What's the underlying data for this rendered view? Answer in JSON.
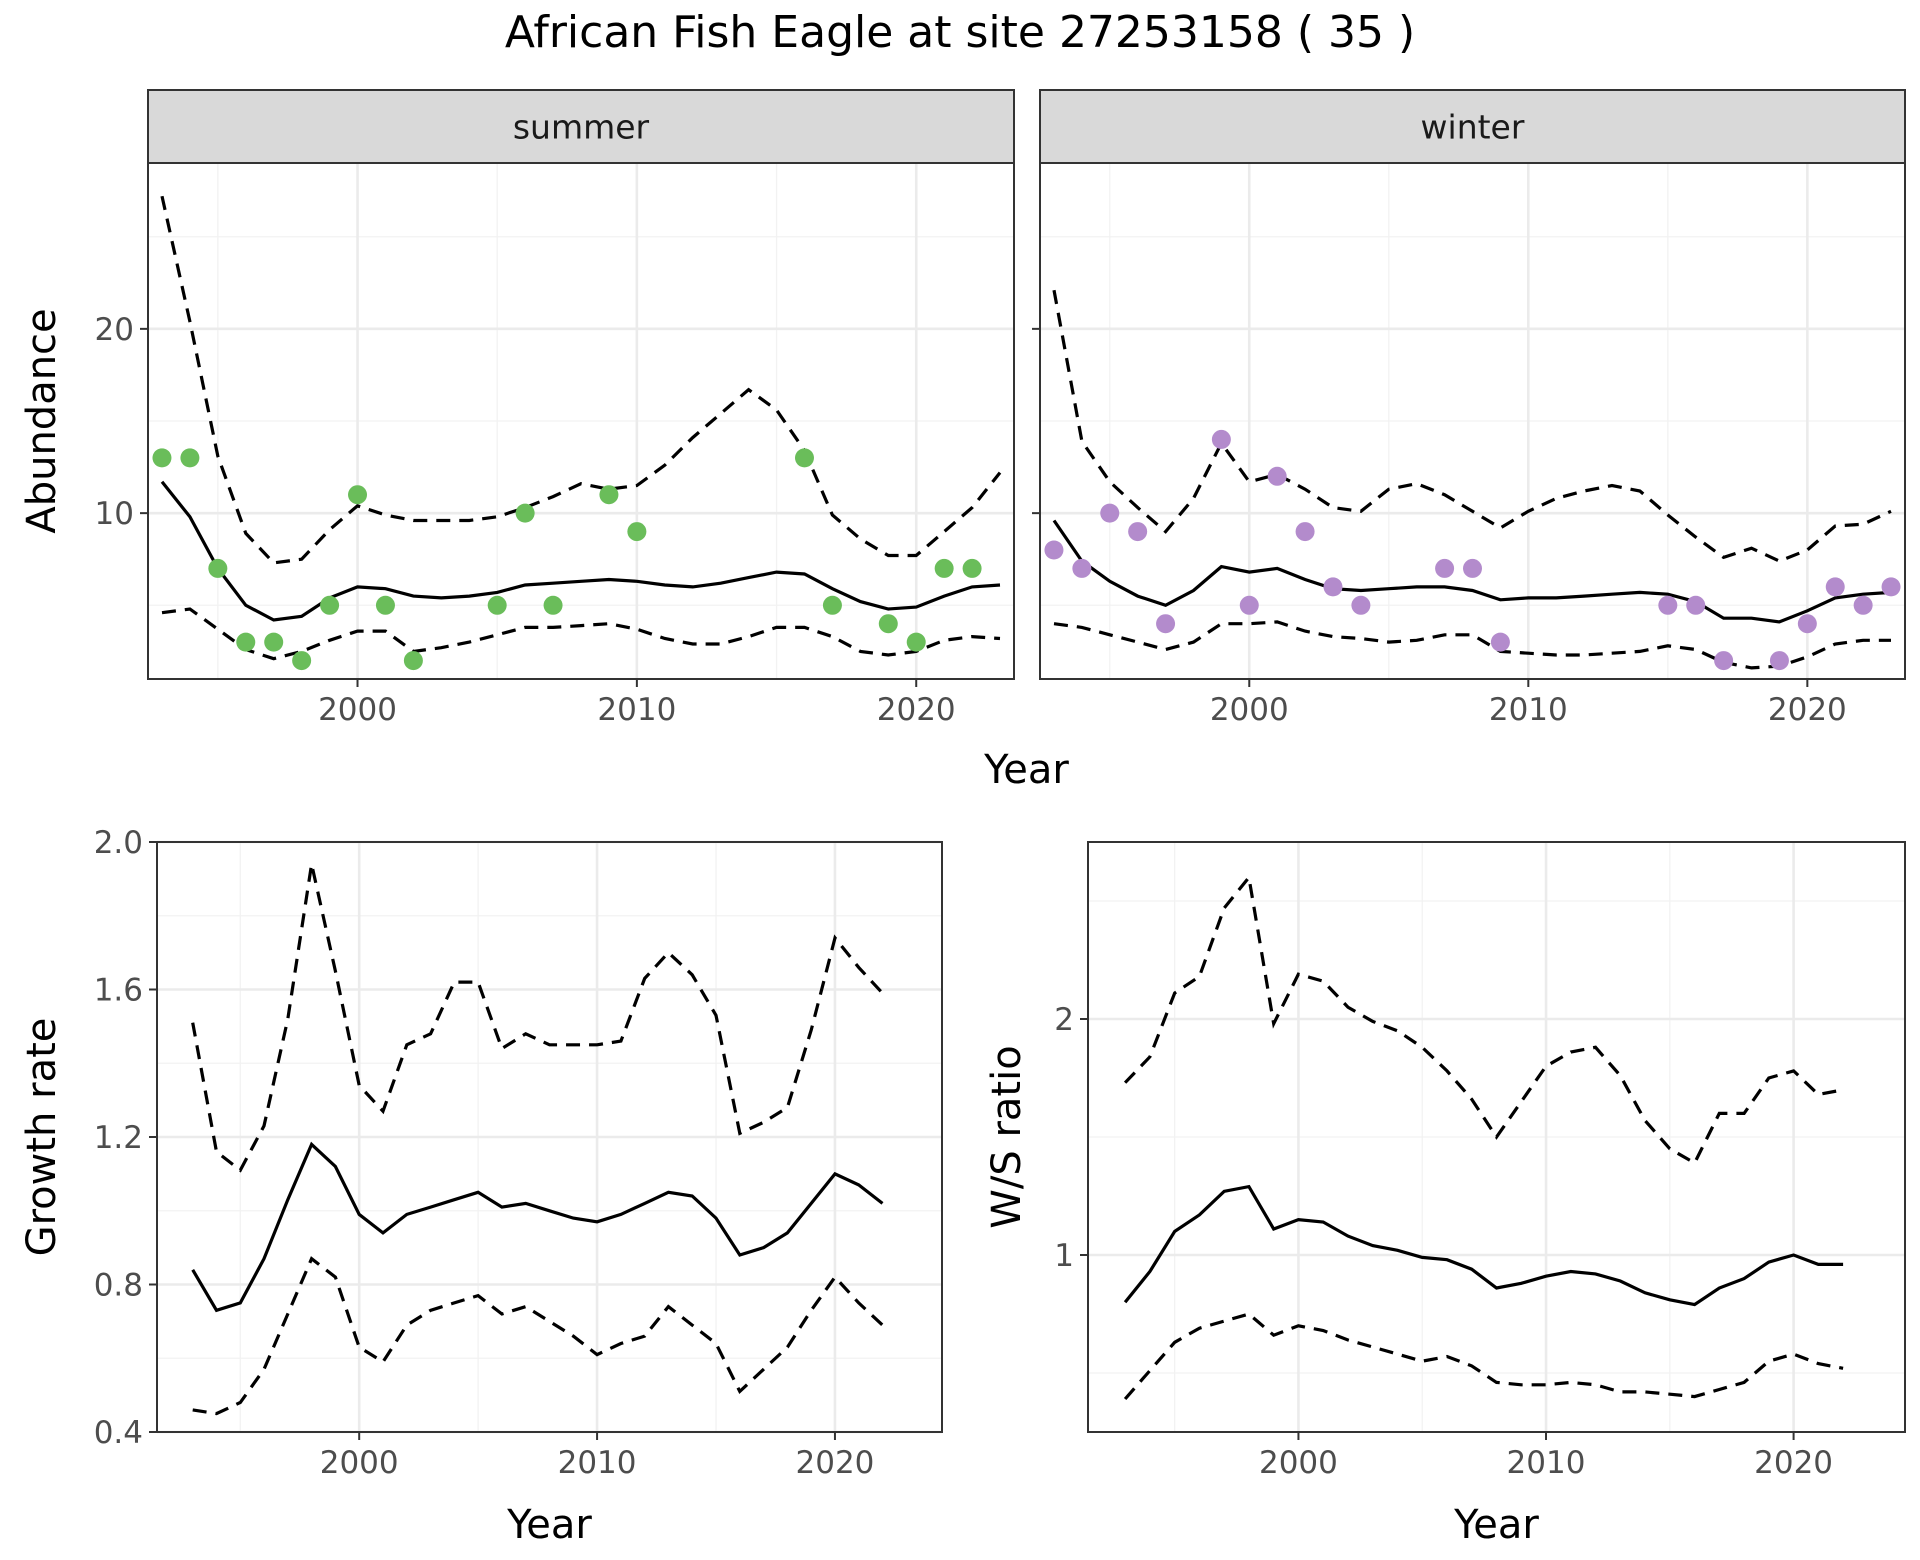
{
  "title": "African Fish Eagle at site 27253158 ( 35 )",
  "colors": {
    "summer_points": "#6abd5a",
    "winter_points": "#b38bcc",
    "lines": "#000000"
  },
  "chart_data": [
    {
      "id": "abundance",
      "type": "line",
      "facets": [
        "summer",
        "winter"
      ],
      "xlabel": "Year",
      "ylabel": "Abundance",
      "xlim": [
        1992.5,
        2023.5
      ],
      "ylim": [
        1,
        29
      ],
      "x_ticks": [
        2000,
        2010,
        2020
      ],
      "y_ticks": [
        10,
        20
      ],
      "grid": true,
      "panels": [
        {
          "label": "summer",
          "point_color": "#6abd5a",
          "points": {
            "x": [
              1993,
              1994,
              1995,
              1996,
              1997,
              1998,
              1999,
              2000,
              2001,
              2002,
              2005,
              2006,
              2007,
              2009,
              2010,
              2016,
              2017,
              2019,
              2020,
              2021,
              2022
            ],
            "y": [
              13,
              13,
              7,
              3,
              3,
              2,
              5,
              11,
              5,
              2,
              5,
              10,
              5,
              11,
              9,
              13,
              5,
              4,
              3,
              7,
              7
            ]
          },
          "series": [
            {
              "role": "mean",
              "x": [
                1993,
                1994,
                1995,
                1996,
                1997,
                1998,
                1999,
                2000,
                2001,
                2002,
                2003,
                2004,
                2005,
                2006,
                2007,
                2008,
                2009,
                2010,
                2011,
                2012,
                2013,
                2014,
                2015,
                2016,
                2017,
                2018,
                2019,
                2020,
                2021,
                2022,
                2023
              ],
              "y": [
                11.7,
                9.8,
                7.0,
                5.0,
                4.2,
                4.4,
                5.4,
                6.0,
                5.9,
                5.5,
                5.4,
                5.5,
                5.7,
                6.1,
                6.2,
                6.3,
                6.4,
                6.3,
                6.1,
                6.0,
                6.2,
                6.5,
                6.8,
                6.7,
                5.9,
                5.2,
                4.8,
                4.9,
                5.5,
                6.0,
                6.1
              ]
            },
            {
              "role": "upper",
              "x": [
                1993,
                1994,
                1995,
                1996,
                1997,
                1998,
                1999,
                2000,
                2001,
                2002,
                2003,
                2004,
                2005,
                2006,
                2007,
                2008,
                2009,
                2010,
                2011,
                2012,
                2013,
                2014,
                2015,
                2016,
                2017,
                2018,
                2019,
                2020,
                2021,
                2022,
                2023
              ],
              "y": [
                27.2,
                20.4,
                13.1,
                8.9,
                7.3,
                7.5,
                9.1,
                10.4,
                9.9,
                9.6,
                9.6,
                9.6,
                9.8,
                10.3,
                10.9,
                11.6,
                11.3,
                11.5,
                12.6,
                14.1,
                15.4,
                16.7,
                15.6,
                13.4,
                9.9,
                8.6,
                7.7,
                7.7,
                9.0,
                10.3,
                12.2
              ]
            },
            {
              "role": "lower",
              "x": [
                1993,
                1994,
                1995,
                1996,
                1997,
                1998,
                1999,
                2000,
                2001,
                2002,
                2003,
                2004,
                2005,
                2006,
                2007,
                2008,
                2009,
                2010,
                2011,
                2012,
                2013,
                2014,
                2015,
                2016,
                2017,
                2018,
                2019,
                2020,
                2021,
                2022,
                2023
              ],
              "y": [
                4.6,
                4.8,
                3.7,
                2.6,
                2.1,
                2.5,
                3.1,
                3.6,
                3.6,
                2.5,
                2.7,
                3.0,
                3.4,
                3.8,
                3.8,
                3.9,
                4.0,
                3.7,
                3.2,
                2.9,
                2.9,
                3.3,
                3.8,
                3.8,
                3.3,
                2.5,
                2.3,
                2.5,
                3.1,
                3.3,
                3.2
              ]
            }
          ]
        },
        {
          "label": "winter",
          "point_color": "#b38bcc",
          "points": {
            "x": [
              1993,
              1994,
              1995,
              1996,
              1997,
              1999,
              2000,
              2001,
              2002,
              2003,
              2004,
              2007,
              2008,
              2009,
              2015,
              2016,
              2017,
              2019,
              2020,
              2021,
              2022,
              2023
            ],
            "y": [
              8,
              7,
              10,
              9,
              4,
              14,
              5,
              12,
              9,
              6,
              5,
              7,
              7,
              3,
              5,
              5,
              2,
              2,
              4,
              6,
              5,
              6
            ]
          },
          "series": [
            {
              "role": "mean",
              "x": [
                1993,
                1994,
                1995,
                1996,
                1997,
                1998,
                1999,
                2000,
                2001,
                2002,
                2003,
                2004,
                2005,
                2006,
                2007,
                2008,
                2009,
                2010,
                2011,
                2012,
                2013,
                2014,
                2015,
                2016,
                2017,
                2018,
                2019,
                2020,
                2021,
                2022,
                2023
              ],
              "y": [
                9.6,
                7.4,
                6.3,
                5.5,
                5.0,
                5.8,
                7.1,
                6.8,
                7.0,
                6.4,
                5.9,
                5.8,
                5.9,
                6.0,
                6.0,
                5.8,
                5.3,
                5.4,
                5.4,
                5.5,
                5.6,
                5.7,
                5.6,
                5.2,
                4.3,
                4.3,
                4.1,
                4.7,
                5.4,
                5.6,
                5.7
              ]
            },
            {
              "role": "upper",
              "x": [
                1993,
                1994,
                1995,
                1996,
                1997,
                1998,
                1999,
                2000,
                2001,
                2002,
                2003,
                2004,
                2005,
                2006,
                2007,
                2008,
                2009,
                2010,
                2011,
                2012,
                2013,
                2014,
                2015,
                2016,
                2017,
                2018,
                2019,
                2020,
                2021,
                2022,
                2023
              ],
              "y": [
                22.1,
                13.9,
                11.7,
                10.3,
                9.0,
                10.8,
                13.8,
                11.7,
                12.1,
                11.3,
                10.3,
                10.1,
                11.3,
                11.6,
                11.0,
                10.1,
                9.2,
                10.1,
                10.8,
                11.2,
                11.5,
                11.2,
                9.9,
                8.7,
                7.6,
                8.1,
                7.4,
                8.0,
                9.3,
                9.4,
                10.1
              ]
            },
            {
              "role": "lower",
              "x": [
                1993,
                1994,
                1995,
                1996,
                1997,
                1998,
                1999,
                2000,
                2001,
                2002,
                2003,
                2004,
                2005,
                2006,
                2007,
                2008,
                2009,
                2010,
                2011,
                2012,
                2013,
                2014,
                2015,
                2016,
                2017,
                2018,
                2019,
                2020,
                2021,
                2022,
                2023
              ],
              "y": [
                4.0,
                3.8,
                3.4,
                3.0,
                2.6,
                3.0,
                4.0,
                4.0,
                4.1,
                3.6,
                3.3,
                3.2,
                3.0,
                3.1,
                3.4,
                3.4,
                2.5,
                2.4,
                2.3,
                2.3,
                2.4,
                2.5,
                2.8,
                2.6,
                1.9,
                1.6,
                1.7,
                2.2,
                2.9,
                3.1,
                3.1
              ]
            }
          ]
        }
      ]
    },
    {
      "id": "growth",
      "type": "line",
      "xlabel": "Year",
      "ylabel": "Growth rate",
      "xlim": [
        1991.5,
        2024.5
      ],
      "ylim": [
        0.4,
        2.0
      ],
      "x_ticks": [
        2000,
        2010,
        2020
      ],
      "y_ticks": [
        0.4,
        0.8,
        1.2,
        1.6,
        2.0
      ],
      "y_tick_labels": [
        "0.4",
        "0.8",
        "1.2",
        "1.6",
        "2.0"
      ],
      "grid": true,
      "series": [
        {
          "role": "mean",
          "x": [
            1993,
            1994,
            1995,
            1996,
            1997,
            1998,
            1999,
            2000,
            2001,
            2002,
            2003,
            2004,
            2005,
            2006,
            2007,
            2008,
            2009,
            2010,
            2011,
            2012,
            2013,
            2014,
            2015,
            2016,
            2017,
            2018,
            2019,
            2020,
            2021,
            2022
          ],
          "y": [
            0.84,
            0.73,
            0.75,
            0.87,
            1.03,
            1.18,
            1.12,
            0.99,
            0.94,
            0.99,
            1.01,
            1.03,
            1.05,
            1.01,
            1.02,
            1.0,
            0.98,
            0.97,
            0.99,
            1.02,
            1.05,
            1.04,
            0.98,
            0.88,
            0.9,
            0.94,
            1.02,
            1.1,
            1.07,
            1.02
          ]
        },
        {
          "role": "upper",
          "x": [
            1993,
            1994,
            1995,
            1996,
            1997,
            1998,
            1999,
            2000,
            2001,
            2002,
            2003,
            2004,
            2005,
            2006,
            2007,
            2008,
            2009,
            2010,
            2011,
            2012,
            2013,
            2014,
            2015,
            2016,
            2017,
            2018,
            2019,
            2020,
            2021,
            2022
          ],
          "y": [
            1.51,
            1.16,
            1.11,
            1.23,
            1.52,
            1.94,
            1.65,
            1.34,
            1.27,
            1.45,
            1.48,
            1.62,
            1.62,
            1.44,
            1.48,
            1.45,
            1.45,
            1.45,
            1.46,
            1.63,
            1.7,
            1.64,
            1.53,
            1.21,
            1.24,
            1.28,
            1.49,
            1.74,
            1.66,
            1.59
          ]
        },
        {
          "role": "lower",
          "x": [
            1993,
            1994,
            1995,
            1996,
            1997,
            1998,
            1999,
            2000,
            2001,
            2002,
            2003,
            2004,
            2005,
            2006,
            2007,
            2008,
            2009,
            2010,
            2011,
            2012,
            2013,
            2014,
            2015,
            2016,
            2017,
            2018,
            2019,
            2020,
            2021,
            2022
          ],
          "y": [
            0.46,
            0.45,
            0.48,
            0.57,
            0.72,
            0.87,
            0.82,
            0.63,
            0.59,
            0.69,
            0.73,
            0.75,
            0.77,
            0.72,
            0.74,
            0.7,
            0.66,
            0.61,
            0.64,
            0.66,
            0.74,
            0.69,
            0.64,
            0.51,
            0.57,
            0.63,
            0.73,
            0.82,
            0.75,
            0.69
          ]
        }
      ]
    },
    {
      "id": "ws_ratio",
      "type": "line",
      "xlabel": "Year",
      "ylabel": "W/S ratio",
      "xlim": [
        1991.5,
        2024.5
      ],
      "ylim": [
        0.25,
        2.75
      ],
      "x_ticks": [
        2000,
        2010,
        2020
      ],
      "y_ticks": [
        1,
        2
      ],
      "grid": true,
      "series": [
        {
          "role": "mean",
          "x": [
            1993,
            1994,
            1995,
            1996,
            1997,
            1998,
            1999,
            2000,
            2001,
            2002,
            2003,
            2004,
            2005,
            2006,
            2007,
            2008,
            2009,
            2010,
            2011,
            2012,
            2013,
            2014,
            2015,
            2016,
            2017,
            2018,
            2019,
            2020,
            2021,
            2022
          ],
          "y": [
            0.8,
            0.93,
            1.1,
            1.17,
            1.27,
            1.29,
            1.11,
            1.15,
            1.14,
            1.08,
            1.04,
            1.02,
            0.99,
            0.98,
            0.94,
            0.86,
            0.88,
            0.91,
            0.93,
            0.92,
            0.89,
            0.84,
            0.81,
            0.79,
            0.86,
            0.9,
            0.97,
            1.0,
            0.96,
            0.96
          ]
        },
        {
          "role": "upper",
          "x": [
            1993,
            1994,
            1995,
            1996,
            1997,
            1998,
            1999,
            2000,
            2001,
            2002,
            2003,
            2004,
            2005,
            2006,
            2007,
            2008,
            2009,
            2010,
            2011,
            2012,
            2013,
            2014,
            2015,
            2016,
            2017,
            2018,
            2019,
            2020,
            2021,
            2022
          ],
          "y": [
            1.73,
            1.84,
            2.11,
            2.18,
            2.47,
            2.6,
            1.98,
            2.19,
            2.16,
            2.05,
            1.99,
            1.95,
            1.88,
            1.78,
            1.66,
            1.5,
            1.65,
            1.8,
            1.86,
            1.88,
            1.76,
            1.57,
            1.45,
            1.39,
            1.6,
            1.6,
            1.75,
            1.78,
            1.68,
            1.7
          ]
        },
        {
          "role": "lower",
          "x": [
            1993,
            1994,
            1995,
            1996,
            1997,
            1998,
            1999,
            2000,
            2001,
            2002,
            2003,
            2004,
            2005,
            2006,
            2007,
            2008,
            2009,
            2010,
            2011,
            2012,
            2013,
            2014,
            2015,
            2016,
            2017,
            2018,
            2019,
            2020,
            2021,
            2022
          ],
          "y": [
            0.39,
            0.51,
            0.63,
            0.69,
            0.72,
            0.75,
            0.66,
            0.7,
            0.68,
            0.64,
            0.61,
            0.58,
            0.55,
            0.57,
            0.53,
            0.46,
            0.45,
            0.45,
            0.46,
            0.45,
            0.42,
            0.42,
            0.41,
            0.4,
            0.43,
            0.46,
            0.55,
            0.58,
            0.54,
            0.52
          ]
        }
      ]
    }
  ]
}
